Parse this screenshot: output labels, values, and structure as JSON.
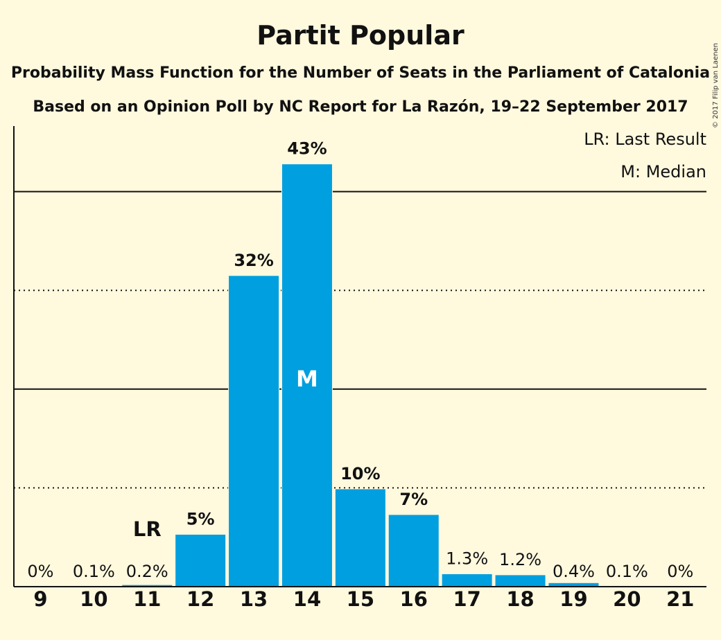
{
  "title": "Partit Popular",
  "subtitle1": "Probability Mass Function for the Number of Seats in the Parliament of Catalonia",
  "subtitle2": "Based on an Opinion Poll by NC Report for La Razón, 19–22 September 2017",
  "copyright": "© 2017 Filip van Laenen",
  "legend": {
    "last_result": "LR: Last Result",
    "median": "M: Median"
  },
  "markers": {
    "last_result_label": "LR",
    "last_result_category": "11",
    "median_label": "M",
    "median_category": "14"
  },
  "colors": {
    "background": "#fff9de",
    "bar": "#009fdf",
    "text": "#111111"
  },
  "chart_data": {
    "type": "bar",
    "categories": [
      "9",
      "10",
      "11",
      "12",
      "13",
      "14",
      "15",
      "16",
      "17",
      "18",
      "19",
      "20",
      "21"
    ],
    "values": [
      0,
      0.1,
      0.2,
      5.3,
      31.5,
      42.8,
      9.9,
      7.3,
      1.3,
      1.2,
      0.4,
      0.1,
      0
    ],
    "value_labels": [
      "0%",
      "0.1%",
      "0.2%",
      "5%",
      "32%",
      "43%",
      "10%",
      "7%",
      "1.3%",
      "1.2%",
      "0.4%",
      "0.1%",
      "0%"
    ],
    "ylim": [
      0,
      45
    ],
    "y_gridlines": {
      "solid": [
        20,
        40
      ],
      "dotted": [
        10,
        30
      ]
    },
    "xlabel": "",
    "ylabel": "",
    "legend_position": "top-right"
  }
}
